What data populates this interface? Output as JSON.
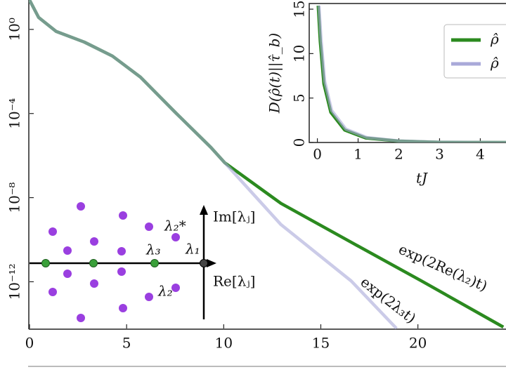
{
  "chart_data": [
    {
      "type": "line",
      "ylog": true,
      "xlim": [
        0,
        24.5
      ],
      "xticks": [
        0,
        5,
        10,
        15,
        20
      ],
      "ylim": [
        6e-15,
        25
      ],
      "yticks": [
        {
          "value": 1,
          "label": "10⁰"
        },
        {
          "value": 0.0001,
          "label": "10⁻⁴"
        },
        {
          "value": 1e-08,
          "label": "10⁻⁸"
        },
        {
          "value": 1e-12,
          "label": "10⁻¹²"
        }
      ],
      "series": [
        {
          "color": "#2b8a1f",
          "x": [
            0,
            0.47,
            1.37,
            2.82,
            4.27,
            5.71,
            7.52,
            9.33,
            10.05,
            12.95,
            16.56,
            20.18,
            24.4
          ],
          "values": [
            25,
            3.7,
            0.8,
            0.25,
            0.054,
            0.0054,
            0.00011,
            2.5e-06,
            4.6e-07,
            5.3e-09,
            7.6e-11,
            1.1e-12,
            7e-15
          ]
        },
        {
          "color": "#a9a9d9",
          "x": [
            0,
            0.47,
            1.37,
            2.82,
            4.27,
            5.71,
            7.52,
            9.33,
            10.05,
            12.95,
            16.56,
            18.9
          ],
          "values": [
            25,
            3.7,
            0.8,
            0.25,
            0.054,
            0.0054,
            0.00011,
            2.5e-06,
            4.6e-07,
            5.2e-10,
            1.1e-12,
            6e-15
          ]
        }
      ],
      "annotations": [
        "exp(2Re(λ₂)t)",
        "exp(2λ₃t)"
      ],
      "diagram_labels": [
        "Im[λⱼ]",
        "Re[λⱼ]",
        "λ₁",
        "λ₂",
        "λ₂*",
        "λ₃"
      ]
    },
    {
      "type": "line",
      "x_label": "tJ",
      "y_label": "D(ρ̂(t)||τ̂_b)",
      "xlim": [
        -0.2,
        4.7
      ],
      "xticks": [
        0,
        1,
        2,
        3,
        4
      ],
      "ylim": [
        0,
        15.4
      ],
      "yticks": [
        0,
        5,
        10,
        15
      ],
      "legend": "upper right",
      "series": [
        {
          "name": "ρ̂",
          "color": "#2b8a1f",
          "x": [
            0.02,
            0.07,
            0.16,
            0.33,
            0.67,
            1.19,
            2,
            3,
            4.7
          ],
          "values": [
            15.4,
            11.4,
            6.6,
            3.4,
            1.4,
            0.5,
            0.16,
            0.02,
            0
          ]
        },
        {
          "name": "ρ̂",
          "color": "#a9a9d9",
          "x": [
            0.04,
            0.09,
            0.18,
            0.35,
            0.7,
            1.22,
            2,
            3,
            4.7
          ],
          "values": [
            15.4,
            11.6,
            6.9,
            3.6,
            1.5,
            0.55,
            0.18,
            0.03,
            0
          ]
        }
      ]
    }
  ]
}
